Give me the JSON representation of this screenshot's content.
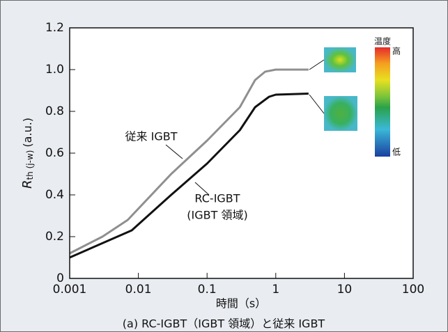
{
  "chart_data": {
    "type": "line",
    "caption": "(a) RC-IGBT（IGBT 領域）と従来 IGBT",
    "x_label": "時間（s）",
    "y_label": {
      "symbol": "R",
      "subscript": "th (j-w)",
      "unit": "(a.u.)"
    },
    "log_x": true,
    "xlim": [
      0.001,
      100
    ],
    "xticks": [
      0.001,
      0.01,
      0.1,
      1,
      10,
      100
    ],
    "ylim": [
      0,
      1.2
    ],
    "yticks": [
      0,
      0.2,
      0.4,
      0.6,
      0.8,
      {
        "value": 1.0,
        "label": "1.0"
      },
      1.2
    ],
    "series": [
      {
        "name": "従来 IGBT",
        "color": "#8f8f8f",
        "x": [
          0.001,
          0.003,
          0.007,
          0.03,
          0.1,
          0.3,
          0.5,
          0.7,
          1,
          3
        ],
        "values": [
          0.12,
          0.2,
          0.28,
          0.5,
          0.66,
          0.82,
          0.95,
          0.99,
          1.0,
          1.0
        ]
      },
      {
        "name": "RC-IGBT",
        "name_line2": "(IGBT 領域)",
        "color": "#111111",
        "x": [
          0.001,
          0.008,
          0.03,
          0.1,
          0.3,
          0.5,
          0.8,
          1,
          3
        ],
        "values": [
          0.1,
          0.23,
          0.4,
          0.55,
          0.71,
          0.82,
          0.87,
          0.88,
          0.885
        ]
      }
    ],
    "colorbar": {
      "title": "温度",
      "high": "高",
      "low": "低"
    }
  }
}
